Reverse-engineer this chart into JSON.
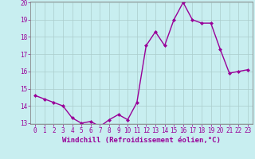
{
  "x": [
    0,
    1,
    2,
    3,
    4,
    5,
    6,
    7,
    8,
    9,
    10,
    11,
    12,
    13,
    14,
    15,
    16,
    17,
    18,
    19,
    20,
    21,
    22,
    23
  ],
  "y": [
    14.6,
    14.4,
    14.2,
    14.0,
    13.3,
    13.0,
    13.1,
    12.8,
    13.2,
    13.5,
    13.2,
    14.2,
    17.5,
    18.3,
    17.5,
    19.0,
    20.0,
    19.0,
    18.8,
    18.8,
    17.3,
    15.9,
    16.0,
    16.1
  ],
  "line_color": "#990099",
  "marker": "D",
  "marker_size": 2,
  "linewidth": 1.0,
  "xlabel": "Windchill (Refroidissement éolien,°C)",
  "ylim_min": 13,
  "ylim_max": 20,
  "xlim_min": -0.5,
  "xlim_max": 23.5,
  "yticks": [
    13,
    14,
    15,
    16,
    17,
    18,
    19,
    20
  ],
  "xticks": [
    0,
    1,
    2,
    3,
    4,
    5,
    6,
    7,
    8,
    9,
    10,
    11,
    12,
    13,
    14,
    15,
    16,
    17,
    18,
    19,
    20,
    21,
    22,
    23
  ],
  "grid_color": "#aacccc",
  "bg_color": "#c8eef0",
  "spine_color": "#888888",
  "tick_color": "#990099",
  "label_color": "#990099",
  "tick_fontsize": 5.5,
  "xlabel_fontsize": 6.5
}
